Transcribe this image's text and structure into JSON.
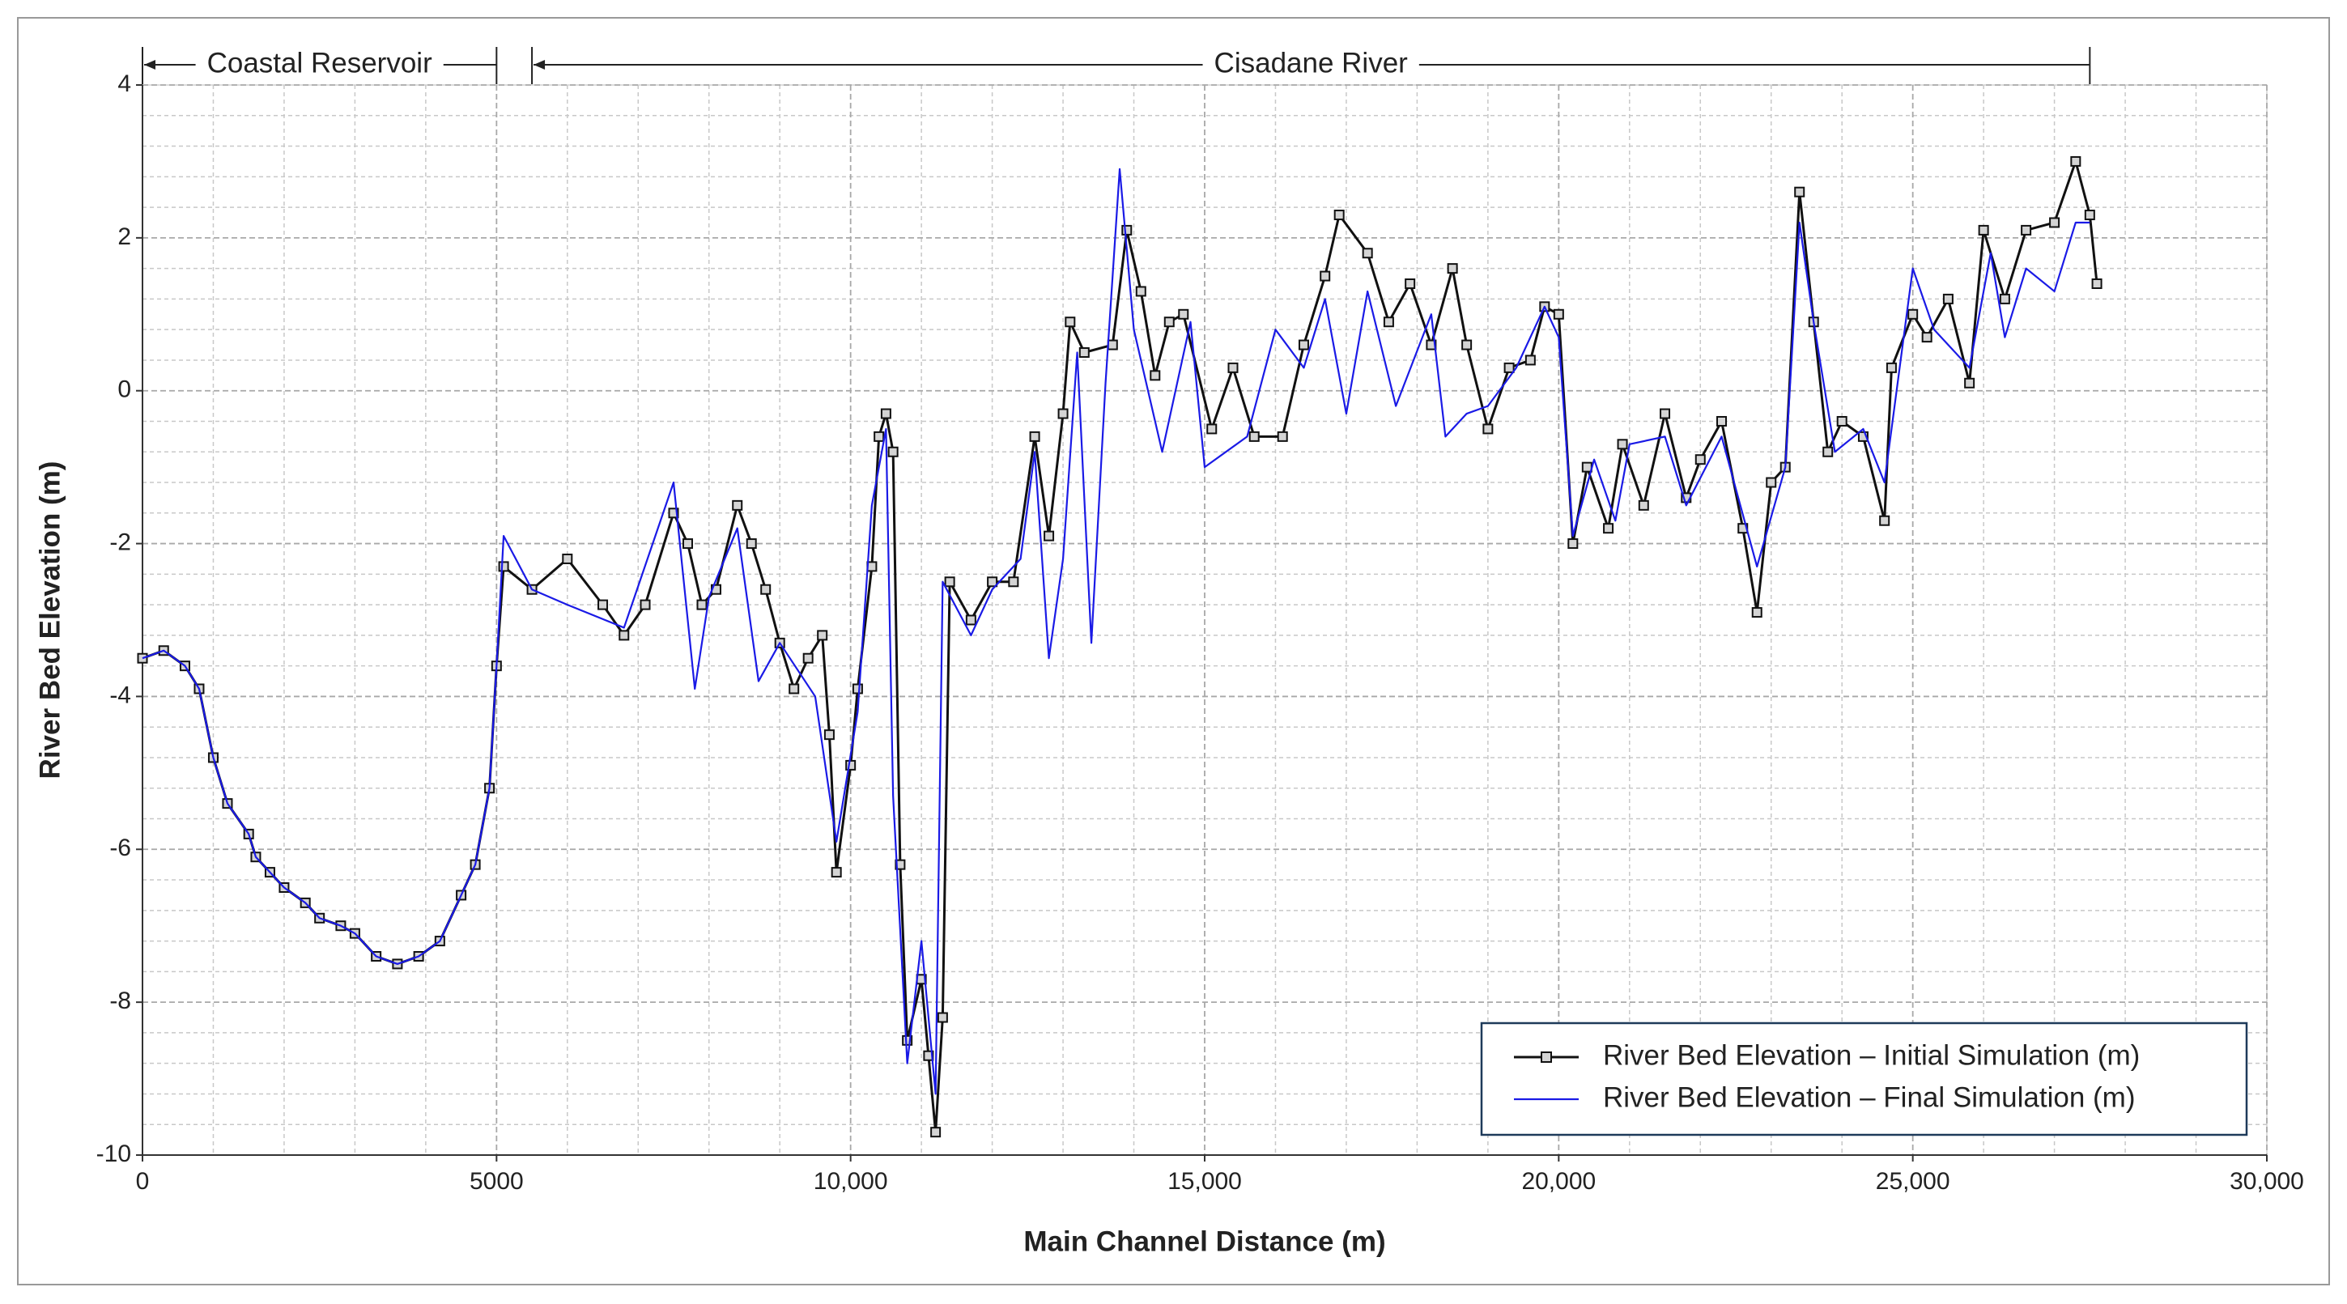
{
  "chart_data": {
    "type": "line",
    "x_label": "Main Channel Distance (m)",
    "y_label": "River Bed Elevation (m)",
    "xlim": [
      0,
      30000
    ],
    "ylim": [
      -10,
      4
    ],
    "xticks": [
      0,
      5000,
      {
        "value": 10000,
        "label": "10,000"
      },
      {
        "value": 15000,
        "label": "15,000"
      },
      {
        "value": 20000,
        "label": "20,000"
      },
      {
        "value": 25000,
        "label": "25,000"
      },
      {
        "value": 30000,
        "label": "30,000"
      }
    ],
    "yticks": [
      -10,
      -8,
      -6,
      -4,
      -2,
      0,
      2,
      4
    ],
    "grid": true,
    "minor_grid": 5,
    "legend": "lower-right",
    "annotations": [
      {
        "text": "Coastal Reservoir",
        "x": [
          0,
          5000
        ]
      },
      {
        "text": "Cisadane River",
        "x": [
          5500,
          27500
        ]
      }
    ],
    "series": [
      {
        "name": "River Bed Elevation – Initial Simulation (m)",
        "color": "#111111",
        "marker": "square",
        "x": [
          0,
          300,
          600,
          800,
          1000,
          1200,
          1500,
          1600,
          1800,
          2000,
          2300,
          2500,
          2800,
          3000,
          3300,
          3600,
          3900,
          4200,
          4500,
          4700,
          4900,
          5000,
          5100,
          5500,
          6000,
          6500,
          6800,
          7100,
          7500,
          7700,
          7900,
          8100,
          8400,
          8600,
          8800,
          9000,
          9200,
          9400,
          9600,
          9700,
          9800,
          10000,
          10100,
          10300,
          10400,
          10500,
          10600,
          10700,
          10800,
          11000,
          11100,
          11200,
          11300,
          11400,
          11700,
          12000,
          12300,
          12600,
          12800,
          13000,
          13100,
          13300,
          13700,
          13900,
          14100,
          14300,
          14500,
          14700,
          15100,
          15400,
          15700,
          16100,
          16400,
          16700,
          16900,
          17300,
          17600,
          17900,
          18200,
          18500,
          18700,
          19000,
          19300,
          19600,
          19800,
          20000,
          20200,
          20400,
          20700,
          20900,
          21200,
          21500,
          21800,
          22000,
          22300,
          22600,
          22800,
          23000,
          23200,
          23400,
          23600,
          23800,
          24000,
          24300,
          24600,
          24700,
          25000,
          25200,
          25500,
          25800,
          26000,
          26300,
          26600,
          27000,
          27300,
          27500,
          27600
        ],
        "values": [
          -3.5,
          -3.4,
          -3.6,
          -3.9,
          -4.8,
          -5.4,
          -5.8,
          -6.1,
          -6.3,
          -6.5,
          -6.7,
          -6.9,
          -7.0,
          -7.1,
          -7.4,
          -7.5,
          -7.4,
          -7.2,
          -6.6,
          -6.2,
          -5.2,
          -3.6,
          -2.3,
          -2.6,
          -2.2,
          -2.8,
          -3.2,
          -2.8,
          -1.6,
          -2.0,
          -2.8,
          -2.6,
          -1.5,
          -2.0,
          -2.6,
          -3.3,
          -3.9,
          -3.5,
          -3.2,
          -4.5,
          -6.3,
          -4.9,
          -3.9,
          -2.3,
          -0.6,
          -0.3,
          -0.8,
          -6.2,
          -8.5,
          -7.7,
          -8.7,
          -9.7,
          -8.2,
          -2.5,
          -3.0,
          -2.5,
          -2.5,
          -0.6,
          -1.9,
          -0.3,
          0.9,
          0.5,
          0.6,
          2.1,
          1.3,
          0.2,
          0.9,
          1.0,
          -0.5,
          0.3,
          -0.6,
          -0.6,
          0.6,
          1.5,
          2.3,
          1.8,
          0.9,
          1.4,
          0.6,
          1.6,
          0.6,
          -0.5,
          0.3,
          0.4,
          1.1,
          1.0,
          -2.0,
          -1.0,
          -1.8,
          -0.7,
          -1.5,
          -0.3,
          -1.4,
          -0.9,
          -0.4,
          -1.8,
          -2.9,
          -1.2,
          -1.0,
          2.6,
          0.9,
          -0.8,
          -0.4,
          -0.6,
          -1.7,
          0.3,
          1.0,
          0.7,
          1.2,
          0.1,
          2.1,
          1.2,
          2.1,
          2.2,
          3.0,
          2.3,
          1.4
        ]
      },
      {
        "name": "River Bed Elevation – Final Simulation (m)",
        "color": "#1a1ae6",
        "marker": "none",
        "x": [
          0,
          300,
          600,
          800,
          1000,
          1200,
          1500,
          1600,
          1800,
          2000,
          2300,
          2500,
          2800,
          3000,
          3300,
          3600,
          3900,
          4200,
          4500,
          4700,
          4900,
          5000,
          5100,
          5500,
          6000,
          6800,
          7500,
          7800,
          8000,
          8400,
          8700,
          9000,
          9500,
          9800,
          10100,
          10300,
          10500,
          10600,
          10800,
          11000,
          11200,
          11300,
          11700,
          12000,
          12400,
          12600,
          12800,
          13000,
          13200,
          13400,
          13600,
          13800,
          14000,
          14400,
          14800,
          15000,
          15600,
          16000,
          16400,
          16700,
          17000,
          17300,
          17700,
          18200,
          18400,
          18700,
          19000,
          19400,
          19800,
          20000,
          20200,
          20500,
          20800,
          21000,
          21500,
          21800,
          22300,
          22800,
          23200,
          23400,
          23600,
          23900,
          24300,
          24600,
          25000,
          25300,
          25800,
          26100,
          26300,
          26600,
          27000,
          27300,
          27500
        ],
        "values": [
          -3.5,
          -3.4,
          -3.6,
          -3.9,
          -4.8,
          -5.4,
          -5.8,
          -6.1,
          -6.3,
          -6.5,
          -6.7,
          -6.9,
          -7.0,
          -7.1,
          -7.4,
          -7.5,
          -7.4,
          -7.2,
          -6.6,
          -6.2,
          -5.2,
          -3.6,
          -1.9,
          -2.6,
          -2.8,
          -3.1,
          -1.2,
          -3.9,
          -2.7,
          -1.8,
          -3.8,
          -3.3,
          -4.0,
          -5.9,
          -4.2,
          -1.5,
          -0.5,
          -5.3,
          -8.8,
          -7.2,
          -9.2,
          -2.5,
          -3.2,
          -2.6,
          -2.2,
          -0.8,
          -3.5,
          -2.2,
          0.5,
          -3.3,
          0.1,
          2.9,
          0.8,
          -0.8,
          0.9,
          -1.0,
          -0.6,
          0.8,
          0.3,
          1.2,
          -0.3,
          1.3,
          -0.2,
          1.0,
          -0.6,
          -0.3,
          -0.2,
          0.3,
          1.1,
          0.7,
          -1.9,
          -0.9,
          -1.7,
          -0.7,
          -0.6,
          -1.5,
          -0.6,
          -2.3,
          -1.0,
          2.2,
          0.9,
          -0.8,
          -0.5,
          -1.2,
          1.6,
          0.8,
          0.3,
          1.8,
          0.7,
          1.6,
          1.3,
          2.2,
          2.2
        ]
      }
    ]
  }
}
